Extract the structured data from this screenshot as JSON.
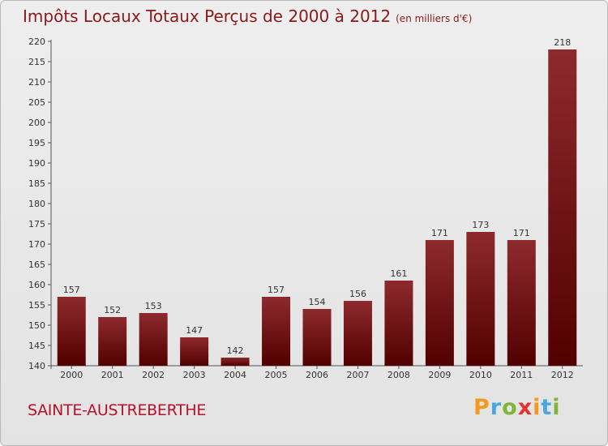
{
  "chart_data": {
    "type": "bar",
    "title": "Impôts Locaux Totaux Perçus de 2000 à 2012",
    "subtitle": "(en milliers d'€)",
    "categories": [
      "2000",
      "2001",
      "2002",
      "2003",
      "2004",
      "2005",
      "2006",
      "2007",
      "2008",
      "2009",
      "2010",
      "2011",
      "2012"
    ],
    "values": [
      157,
      152,
      153,
      147,
      142,
      157,
      154,
      156,
      161,
      171,
      173,
      171,
      218
    ],
    "ylim": [
      140,
      220
    ],
    "yticks": [
      140,
      145,
      150,
      155,
      160,
      165,
      170,
      175,
      180,
      185,
      190,
      195,
      200,
      205,
      210,
      215,
      220
    ],
    "xlabel": "",
    "ylabel": "",
    "grid": false,
    "bar_color": "#7a1a1e"
  },
  "footer": {
    "city": "SAINTE-AUSTREBERTHE"
  },
  "logo": {
    "text": "Proxiti",
    "letters": [
      "P",
      "r",
      "o",
      "x",
      "i",
      "t",
      "i"
    ]
  }
}
